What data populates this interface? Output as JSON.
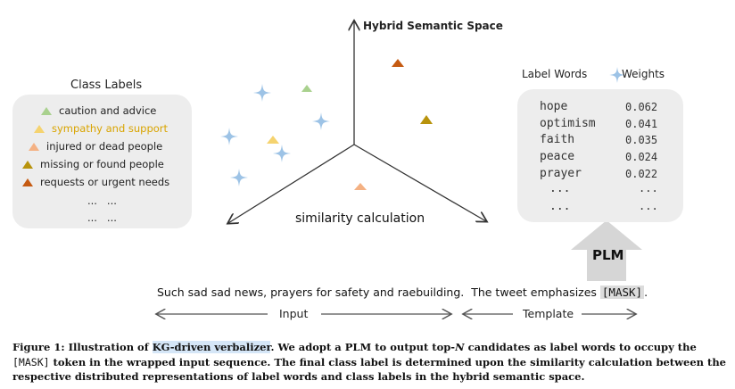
{
  "axis_label": "Hybrid Semantic Space",
  "center_label": "similarity calculation",
  "class_labels": {
    "title": "Class Labels",
    "items": [
      {
        "label": "caution and advice",
        "color": "#a9d18e"
      },
      {
        "label": "sympathy and support",
        "color": "#f5d36f",
        "text_color": "#d9a400"
      },
      {
        "label": "injured or dead people",
        "color": "#f4b183"
      },
      {
        "label": "missing or found people",
        "color": "#b8930c"
      },
      {
        "label": "requests or urgent needs",
        "color": "#c55a11"
      }
    ],
    "ellipsis_1": "...   ...",
    "ellipsis_2": "...   ..."
  },
  "label_words": {
    "header_words": "Label Words",
    "header_weights": "Weights",
    "rows": [
      {
        "word": "hope",
        "weight": "0.062"
      },
      {
        "word": "optimism",
        "weight": "0.041"
      },
      {
        "word": "faith",
        "weight": "0.035"
      },
      {
        "word": "peace",
        "weight": "0.024"
      },
      {
        "word": "prayer",
        "weight": "0.022"
      }
    ],
    "ellipsis": "...",
    "star_color": "#9dc3e6"
  },
  "plm_label": "PLM",
  "sentence": {
    "text": "Such sad sad news, prayers for safety and raebuilding.  The tweet emphasizes ",
    "mask": "[MASK]",
    "end": "."
  },
  "input_label": "Input",
  "template_label": "Template",
  "caption": {
    "prefix": "Figure 1: Illustration of ",
    "highlight": "KG-driven verbalizer",
    "part1": ". We adopt a PLM to output top-",
    "n": "N",
    "part2": " candidates as label words to occupy the ",
    "mask": "[MASK]",
    "part3": " token in the wrapped input sequence. The final class label is determined upon the similarity calculation between the respective distributed representations of label words and class labels in the hybrid semantic space."
  }
}
